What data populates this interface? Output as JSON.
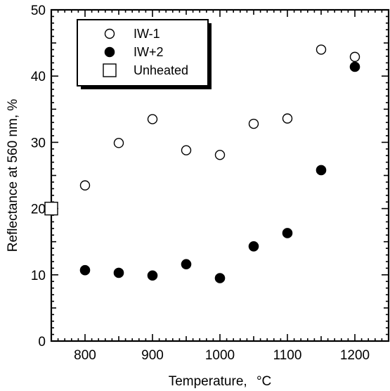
{
  "chart_data": {
    "type": "scatter",
    "xlabel": "Temperature,",
    "xlabel_unit": "°C",
    "ylabel": "Reflectance at 560 nm,  %",
    "xlim": [
      750,
      1250
    ],
    "ylim": [
      0,
      50
    ],
    "x_ticks": [
      800,
      900,
      1000,
      1100,
      1200
    ],
    "y_ticks": [
      0,
      10,
      20,
      30,
      40,
      50
    ],
    "legend_position": "top-left",
    "series": [
      {
        "name": "IW-1",
        "marker": "open-circle",
        "points": [
          {
            "x": 800,
            "y": 23.5
          },
          {
            "x": 850,
            "y": 29.9
          },
          {
            "x": 900,
            "y": 33.5
          },
          {
            "x": 950,
            "y": 28.8
          },
          {
            "x": 1000,
            "y": 28.1
          },
          {
            "x": 1050,
            "y": 32.8
          },
          {
            "x": 1100,
            "y": 33.6
          },
          {
            "x": 1150,
            "y": 44.0
          },
          {
            "x": 1200,
            "y": 42.9
          }
        ]
      },
      {
        "name": "IW+2",
        "marker": "filled-circle",
        "points": [
          {
            "x": 800,
            "y": 10.7
          },
          {
            "x": 850,
            "y": 10.3
          },
          {
            "x": 900,
            "y": 9.9
          },
          {
            "x": 950,
            "y": 11.6
          },
          {
            "x": 1000,
            "y": 9.5
          },
          {
            "x": 1050,
            "y": 14.3
          },
          {
            "x": 1100,
            "y": 16.3
          },
          {
            "x": 1150,
            "y": 25.8
          },
          {
            "x": 1200,
            "y": 41.4
          }
        ]
      },
      {
        "name": "Unheated",
        "marker": "open-square",
        "points": [
          {
            "x": 750,
            "y": 20.0
          }
        ]
      }
    ]
  }
}
